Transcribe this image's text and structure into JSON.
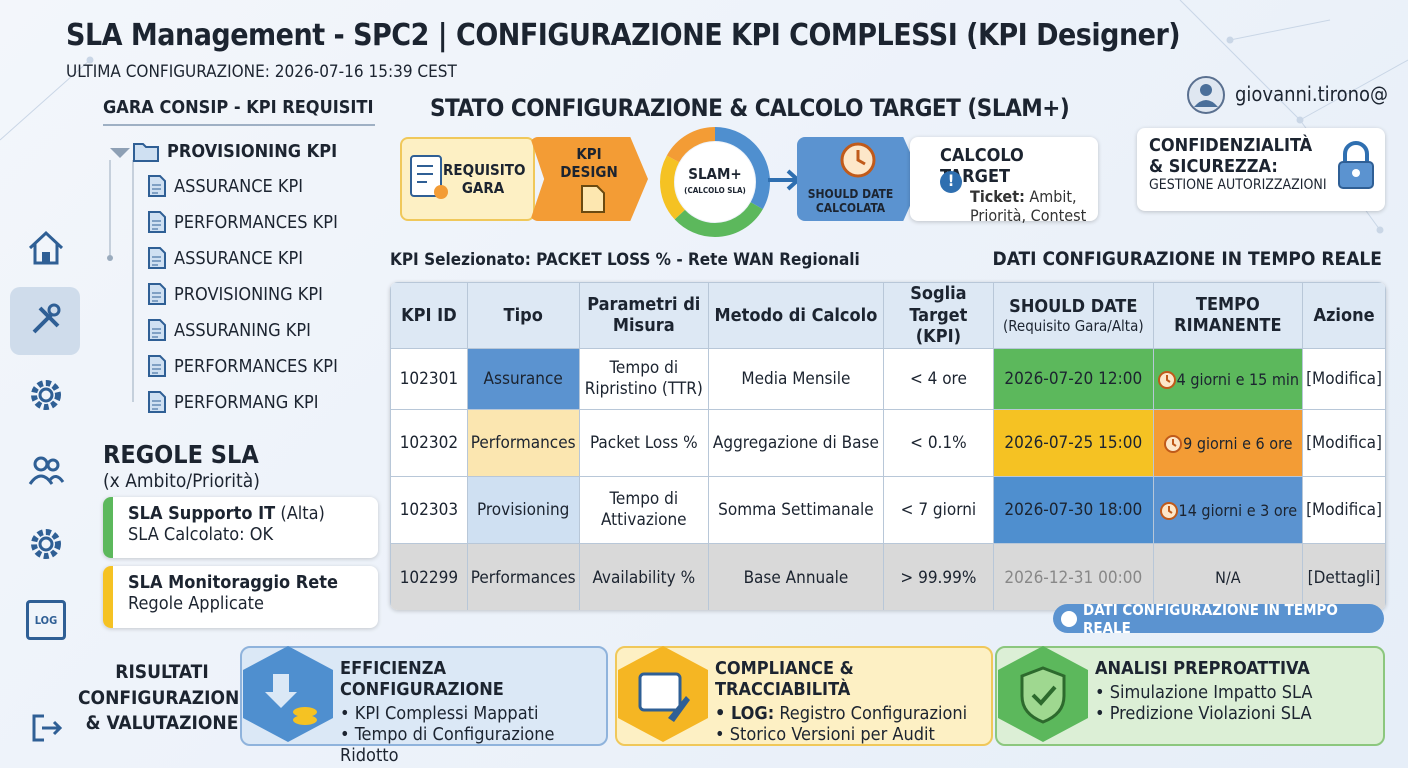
{
  "header": {
    "title": "SLA Management - SPC2 | CONFIGURAZIONE KPI COMPLESSI  (KPI Designer)",
    "subtitle": "ULTIMA CONFIGURAZIONE: 2026-07-16 15:39 CEST"
  },
  "user": {
    "name": "giovanni.tirono@"
  },
  "sidebar": {
    "log_label": "LOG"
  },
  "tree": {
    "title": "GARA CONSIP - KPI REQUISITI",
    "root": "PROVISIONING KPI",
    "items": [
      "ASSURANCE KPI",
      "PERFORMANCES KPI",
      "ASSURANCE KPI",
      "PROVISIONING KPI",
      "ASSURANING KPI",
      "PERFORMANCES KPI",
      "PERFORMANG KPI"
    ]
  },
  "rules": {
    "title": "REGOLE SLA",
    "subtitle": "(x Ambito/Priorità)",
    "items": [
      {
        "name": "SLA Supporto IT",
        "priority": "(Alta)",
        "status": "SLA Calcolato: OK"
      },
      {
        "name": "SLA Monitoraggio Rete",
        "status": "Regole Applicate"
      }
    ]
  },
  "flow": {
    "title": "STATO CONFIGURAZIONE & CALCOLO TARGET (SLAM+)",
    "step1": "REQUISITO GARA",
    "step2": "KPI DESIGN",
    "step3": "SLAM+",
    "step3_note": "(CALCOLO SLA)",
    "step4": "SHOULD DATE CALCOLATA",
    "target_title": "CALCOLO TARGET",
    "target_label": "Ticket:",
    "target_text": "Ambit, Priorità, Contest"
  },
  "security": {
    "title": "CONFIDENZIALITÀ & SICUREZZA:",
    "text": "GESTIONE AUTORIZZAZIONI"
  },
  "table": {
    "selected": "KPI Selezionato: PACKET LOSS % - Rete WAN Regionali",
    "realtime": "DATI CONFIGURAZIONE IN TEMPO REALE",
    "headers": [
      "KPI ID",
      "Tipo",
      "Parametri di Misura",
      "Metodo di Calcolo",
      "Soglia Target (KPI)",
      "SHOULD DATE",
      "TEMPO RIMANENTE",
      "Azione"
    ],
    "should_date_note": "(Requisito Gara/Alta)",
    "rows": [
      [
        "102301",
        "Assurance",
        "Tempo di Ripristino (TTR)",
        "Media Mensile",
        "< 4 ore",
        "2026-07-20 12:00",
        "4 giorni e 15 min",
        "[Modifica]"
      ],
      [
        "102302",
        "Performances",
        "Packet Loss %",
        "Aggregazione di Base",
        "< 0.1%",
        "2026-07-25 15:00",
        "9 giorni e 6 ore",
        "[Modifica]"
      ],
      [
        "102303",
        "Provisioning",
        "Tempo di Attivazione",
        "Somma Settimanale",
        "< 7 giorni",
        "2026-07-30 18:00",
        "14 giorni e 3 ore",
        "[Modifica]"
      ],
      [
        "102299",
        "Performances",
        "Availability %",
        "Base Annuale",
        "> 99.99%",
        "2026-12-31 00:00",
        "N/A",
        "[Dettagli]"
      ]
    ],
    "badge": "DATI CONFIGURAZIONE IN TEMPO REALE"
  },
  "results": {
    "title": "RISULTATI CONFIGURAZIONE & VALUTAZIONE",
    "cards": [
      {
        "title": "EFFICIENZA CONFIGURAZIONE",
        "items": [
          "• KPI Complessi Mappati",
          "• Tempo di Configurazione Ridotto"
        ]
      },
      {
        "title": "COMPLIANCE & TRACCIABILITÀ",
        "log": "• LOG:",
        "items": [
          "Registro Configurazioni",
          "• Storico Versioni per Audit"
        ]
      },
      {
        "title": "ANALISI PREPROATTIVA",
        "items": [
          "• Simulazione Impatto SLA",
          "• Predizione Violazioni SLA"
        ]
      }
    ]
  }
}
